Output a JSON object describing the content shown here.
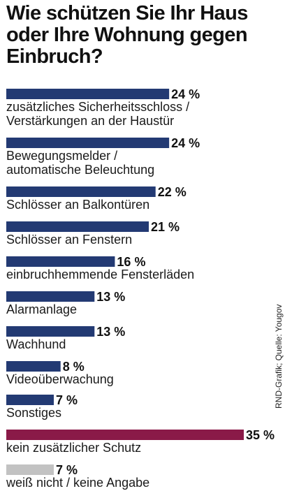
{
  "chart_data": {
    "type": "bar",
    "orientation": "horizontal",
    "title": "Wie schützen Sie Ihr Haus oder Ihre Wohnung gegen Einbruch?",
    "unit": "%",
    "xlim": [
      0,
      35
    ],
    "grid": false,
    "categories": [
      [
        "zusätzliches Sicherheitsschloss /",
        "Verstärkungen an der Haustür"
      ],
      [
        "Bewegungsmelder /",
        "automatische Beleuchtung"
      ],
      [
        "Schlösser an Balkontüren"
      ],
      [
        "Schlösser an Fenstern"
      ],
      [
        "einbruchhemmende Fensterläden"
      ],
      [
        "Alarmanlage"
      ],
      [
        "Wachhund"
      ],
      [
        "Videoüberwachung"
      ],
      [
        "Sonstiges"
      ],
      [
        "kein zusätzlicher Schutz"
      ],
      [
        "weiß nicht / keine Angabe"
      ]
    ],
    "values": [
      24,
      24,
      22,
      21,
      16,
      13,
      13,
      8,
      7,
      35,
      7
    ],
    "value_labels": [
      "24 %",
      "24 %",
      "22 %",
      "21 %",
      "16 %",
      "13 %",
      "13 %",
      "8 %",
      "7 %",
      "35 %",
      "7 %"
    ],
    "bar_colors": [
      "#233a73",
      "#233a73",
      "#233a73",
      "#233a73",
      "#233a73",
      "#233a73",
      "#233a73",
      "#233a73",
      "#233a73",
      "#8a1a48",
      "#c2c2c2"
    ],
    "source": "RND-Grafik; Quelle: Yougov"
  }
}
